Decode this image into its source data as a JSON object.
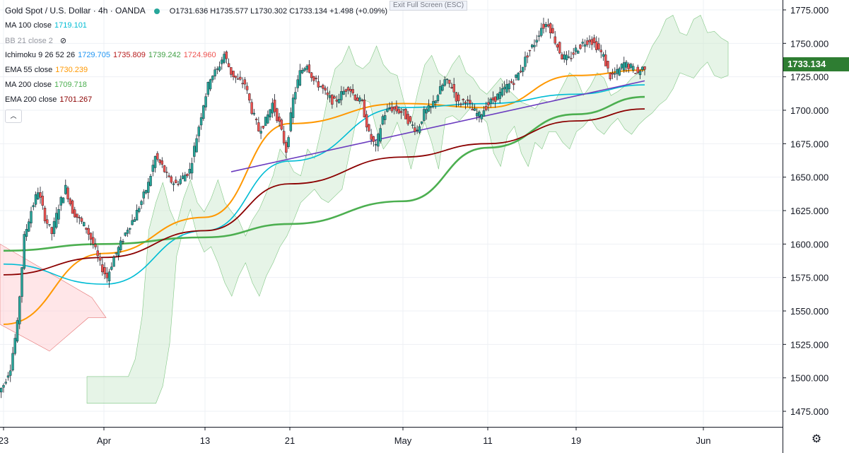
{
  "header": {
    "symbol": "Gold Spot / U.S. Dollar · 4h · OANDA",
    "ohlc": "O1731.636  H1735.577  L1730.302  C1733.134  +1.498 (+0.09%)"
  },
  "exit_full_screen": "Exit Full Screen (ESC)",
  "indicators": [
    {
      "name": "MA 100 close",
      "values": [
        "1719.101"
      ],
      "colors": [
        "#00bcd4"
      ]
    },
    {
      "name": "BB 21 close 2",
      "values": [],
      "colors": [],
      "hidden": true
    },
    {
      "name": "Ichimoku 9 26 52 26",
      "values": [
        "1729.705",
        "1735.809",
        "1739.242",
        "1724.960"
      ],
      "colors": [
        "#2196f3",
        "#b71c1c",
        "#43a047",
        "#ef5350"
      ]
    },
    {
      "name": "EMA 55 close",
      "values": [
        "1730.239"
      ],
      "colors": [
        "#ff9800"
      ]
    },
    {
      "name": "MA 200 close",
      "values": [
        "1709.718"
      ],
      "colors": [
        "#4caf50"
      ]
    },
    {
      "name": "EMA 200 close",
      "values": [
        "1701.267"
      ],
      "colors": [
        "#8b0000"
      ]
    }
  ],
  "last_price": "1733.134",
  "colors": {
    "up": "#26a69a",
    "down": "#ef5350",
    "ma100": "#00bcd4",
    "ema55": "#ff9800",
    "ma200": "#4caf50",
    "ema200": "#8b0000",
    "trendline": "#6a3bbf",
    "last_price_bg": "#2e7d32",
    "cloud_bull": "#c8e6c9",
    "cloud_bear": "#ffcdd2"
  },
  "chart_data": {
    "type": "candlestick",
    "title": "Gold Spot / U.S. Dollar",
    "timeframe": "4h",
    "x_ticks": [
      "23",
      "Apr",
      "13",
      "21",
      "May",
      "11",
      "19",
      "Jun"
    ],
    "y_ticks": [
      "1775.000",
      "1750.000",
      "1725.000",
      "1700.000",
      "1675.000",
      "1650.000",
      "1625.000",
      "1600.000",
      "1575.000",
      "1550.000",
      "1525.000",
      "1500.000",
      "1475.000"
    ],
    "ylim": [
      1467,
      1779
    ],
    "grid": true,
    "ohlc_anchor_closes": [
      1495,
      1508,
      1540,
      1605,
      1625,
      1640,
      1620,
      1608,
      1628,
      1642,
      1625,
      1618,
      1612,
      1600,
      1585,
      1575,
      1590,
      1600,
      1612,
      1620,
      1632,
      1645,
      1665,
      1658,
      1648,
      1645,
      1650,
      1655,
      1680,
      1705,
      1725,
      1730,
      1742,
      1728,
      1722,
      1720,
      1700,
      1685,
      1692,
      1705,
      1690,
      1670,
      1708,
      1728,
      1735,
      1722,
      1718,
      1710,
      1706,
      1712,
      1718,
      1710,
      1705,
      1682,
      1672,
      1695,
      1702,
      1700,
      1698,
      1690,
      1685,
      1698,
      1702,
      1712,
      1722,
      1718,
      1705,
      1708,
      1700,
      1696,
      1703,
      1708,
      1712,
      1718,
      1722,
      1730,
      1742,
      1750,
      1762,
      1765,
      1752,
      1740,
      1738,
      1745,
      1750,
      1753,
      1748,
      1740,
      1725,
      1728,
      1735,
      1732,
      1728,
      1733
    ],
    "series": [
      {
        "name": "EMA 55 close",
        "values": [
          {
            "x": "23",
            "y": 1540
          },
          {
            "x": "Apr",
            "y": 1593
          },
          {
            "x": "13",
            "y": 1620
          },
          {
            "x": "21",
            "y": 1690
          },
          {
            "x": "May",
            "y": 1705
          },
          {
            "x": "11",
            "y": 1702
          },
          {
            "x": "19",
            "y": 1726
          },
          {
            "x": "end",
            "y": 1730
          }
        ]
      },
      {
        "name": "MA 100 close",
        "values": [
          {
            "x": "23",
            "y": 1585
          },
          {
            "x": "Apr",
            "y": 1570
          },
          {
            "x": "13",
            "y": 1610
          },
          {
            "x": "21",
            "y": 1662
          },
          {
            "x": "May",
            "y": 1702
          },
          {
            "x": "11",
            "y": 1705
          },
          {
            "x": "19",
            "y": 1712
          },
          {
            "x": "end",
            "y": 1719
          }
        ]
      },
      {
        "name": "MA 200 close",
        "values": [
          {
            "x": "23",
            "y": 1595
          },
          {
            "x": "Apr",
            "y": 1600
          },
          {
            "x": "13",
            "y": 1605
          },
          {
            "x": "21",
            "y": 1615
          },
          {
            "x": "May",
            "y": 1632
          },
          {
            "x": "11",
            "y": 1672
          },
          {
            "x": "19",
            "y": 1697
          },
          {
            "x": "end",
            "y": 1710
          }
        ]
      },
      {
        "name": "EMA 200 close",
        "values": [
          {
            "x": "23",
            "y": 1577
          },
          {
            "x": "Apr",
            "y": 1590
          },
          {
            "x": "13",
            "y": 1610
          },
          {
            "x": "21",
            "y": 1645
          },
          {
            "x": "May",
            "y": 1665
          },
          {
            "x": "11",
            "y": 1675
          },
          {
            "x": "19",
            "y": 1692
          },
          {
            "x": "end",
            "y": 1701
          }
        ]
      },
      {
        "name": "Trendline",
        "values": [
          {
            "x": "15",
            "y": 1654
          },
          {
            "x": "end",
            "y": 1722
          }
        ]
      }
    ]
  }
}
